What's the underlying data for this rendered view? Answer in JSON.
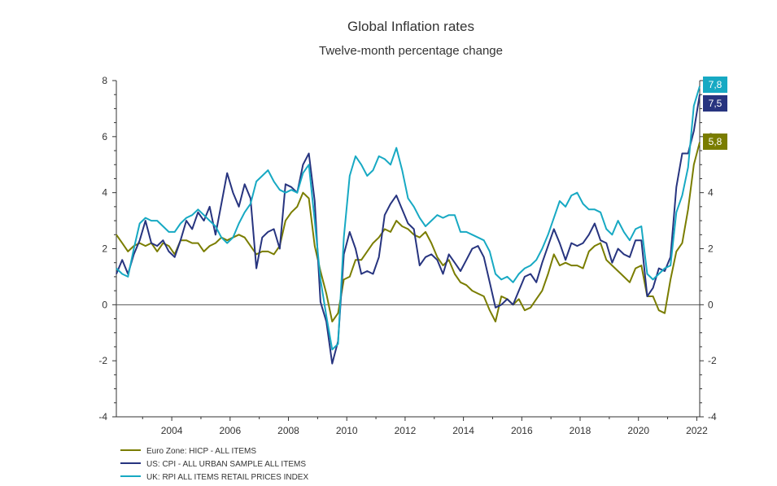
{
  "chart_data": {
    "type": "line",
    "title": "Global Inflation rates",
    "subtitle": "Twelve-month percentage change",
    "xlabel": "",
    "ylabel": "",
    "xlim": [
      2002.1,
      2022.1
    ],
    "ylim": [
      -4,
      8
    ],
    "x_ticks": [
      2004,
      2006,
      2008,
      2010,
      2012,
      2014,
      2016,
      2018,
      2020,
      2022
    ],
    "y_ticks": [
      -4,
      -2,
      0,
      2,
      4,
      6,
      8
    ],
    "y_ticks_right": [
      -4,
      -2,
      0,
      2,
      4,
      6,
      8
    ],
    "grid": false,
    "legend_position": "bottom-left",
    "series": [
      {
        "name": "Euro Zone: HICP - ALL ITEMS",
        "color": "#7a7d00",
        "end_label": "5,8",
        "points": [
          [
            2002.1,
            2.5
          ],
          [
            2002.3,
            2.2
          ],
          [
            2002.5,
            1.9
          ],
          [
            2002.7,
            2.1
          ],
          [
            2002.9,
            2.2
          ],
          [
            2003.1,
            2.1
          ],
          [
            2003.3,
            2.2
          ],
          [
            2003.5,
            1.9
          ],
          [
            2003.7,
            2.2
          ],
          [
            2003.9,
            2.1
          ],
          [
            2004.1,
            1.8
          ],
          [
            2004.3,
            2.3
          ],
          [
            2004.5,
            2.3
          ],
          [
            2004.7,
            2.2
          ],
          [
            2004.9,
            2.2
          ],
          [
            2005.1,
            1.9
          ],
          [
            2005.3,
            2.1
          ],
          [
            2005.5,
            2.2
          ],
          [
            2005.7,
            2.4
          ],
          [
            2005.9,
            2.3
          ],
          [
            2006.1,
            2.4
          ],
          [
            2006.3,
            2.5
          ],
          [
            2006.5,
            2.4
          ],
          [
            2006.7,
            2.1
          ],
          [
            2006.9,
            1.8
          ],
          [
            2007.1,
            1.9
          ],
          [
            2007.3,
            1.9
          ],
          [
            2007.5,
            1.8
          ],
          [
            2007.7,
            2.1
          ],
          [
            2007.9,
            3.0
          ],
          [
            2008.1,
            3.3
          ],
          [
            2008.3,
            3.5
          ],
          [
            2008.5,
            4.0
          ],
          [
            2008.7,
            3.8
          ],
          [
            2008.9,
            2.1
          ],
          [
            2009.1,
            1.2
          ],
          [
            2009.3,
            0.4
          ],
          [
            2009.5,
            -0.6
          ],
          [
            2009.7,
            -0.3
          ],
          [
            2009.9,
            0.9
          ],
          [
            2010.1,
            1.0
          ],
          [
            2010.3,
            1.6
          ],
          [
            2010.5,
            1.6
          ],
          [
            2010.7,
            1.9
          ],
          [
            2010.9,
            2.2
          ],
          [
            2011.1,
            2.4
          ],
          [
            2011.3,
            2.7
          ],
          [
            2011.5,
            2.6
          ],
          [
            2011.7,
            3.0
          ],
          [
            2011.9,
            2.8
          ],
          [
            2012.1,
            2.7
          ],
          [
            2012.3,
            2.5
          ],
          [
            2012.5,
            2.4
          ],
          [
            2012.7,
            2.6
          ],
          [
            2012.9,
            2.2
          ],
          [
            2013.1,
            1.7
          ],
          [
            2013.3,
            1.4
          ],
          [
            2013.5,
            1.6
          ],
          [
            2013.7,
            1.1
          ],
          [
            2013.9,
            0.8
          ],
          [
            2014.1,
            0.7
          ],
          [
            2014.3,
            0.5
          ],
          [
            2014.5,
            0.4
          ],
          [
            2014.7,
            0.3
          ],
          [
            2014.9,
            -0.2
          ],
          [
            2015.1,
            -0.6
          ],
          [
            2015.3,
            0.3
          ],
          [
            2015.5,
            0.2
          ],
          [
            2015.7,
            0.0
          ],
          [
            2015.9,
            0.2
          ],
          [
            2016.1,
            -0.2
          ],
          [
            2016.3,
            -0.1
          ],
          [
            2016.5,
            0.2
          ],
          [
            2016.7,
            0.5
          ],
          [
            2016.9,
            1.1
          ],
          [
            2017.1,
            1.8
          ],
          [
            2017.3,
            1.4
          ],
          [
            2017.5,
            1.5
          ],
          [
            2017.7,
            1.4
          ],
          [
            2017.9,
            1.4
          ],
          [
            2018.1,
            1.3
          ],
          [
            2018.3,
            1.9
          ],
          [
            2018.5,
            2.1
          ],
          [
            2018.7,
            2.2
          ],
          [
            2018.9,
            1.6
          ],
          [
            2019.1,
            1.4
          ],
          [
            2019.3,
            1.2
          ],
          [
            2019.5,
            1.0
          ],
          [
            2019.7,
            0.8
          ],
          [
            2019.9,
            1.3
          ],
          [
            2020.1,
            1.4
          ],
          [
            2020.3,
            0.3
          ],
          [
            2020.5,
            0.3
          ],
          [
            2020.7,
            -0.2
          ],
          [
            2020.9,
            -0.3
          ],
          [
            2021.1,
            0.9
          ],
          [
            2021.3,
            1.9
          ],
          [
            2021.5,
            2.2
          ],
          [
            2021.7,
            3.4
          ],
          [
            2021.9,
            5.0
          ],
          [
            2022.1,
            5.8
          ]
        ]
      },
      {
        "name": "US: CPI - ALL URBAN SAMPLE ALL ITEMS",
        "color": "#27347f",
        "end_label": "7,5",
        "points": [
          [
            2002.1,
            1.1
          ],
          [
            2002.3,
            1.6
          ],
          [
            2002.5,
            1.1
          ],
          [
            2002.7,
            1.8
          ],
          [
            2002.9,
            2.3
          ],
          [
            2003.1,
            3.0
          ],
          [
            2003.3,
            2.2
          ],
          [
            2003.5,
            2.1
          ],
          [
            2003.7,
            2.3
          ],
          [
            2003.9,
            1.9
          ],
          [
            2004.1,
            1.7
          ],
          [
            2004.3,
            2.3
          ],
          [
            2004.5,
            3.0
          ],
          [
            2004.7,
            2.7
          ],
          [
            2004.9,
            3.3
          ],
          [
            2005.1,
            3.0
          ],
          [
            2005.3,
            3.5
          ],
          [
            2005.5,
            2.5
          ],
          [
            2005.7,
            3.6
          ],
          [
            2005.9,
            4.7
          ],
          [
            2006.1,
            4.0
          ],
          [
            2006.3,
            3.5
          ],
          [
            2006.5,
            4.3
          ],
          [
            2006.7,
            3.8
          ],
          [
            2006.9,
            1.3
          ],
          [
            2007.1,
            2.4
          ],
          [
            2007.3,
            2.6
          ],
          [
            2007.5,
            2.7
          ],
          [
            2007.7,
            2.0
          ],
          [
            2007.9,
            4.3
          ],
          [
            2008.1,
            4.2
          ],
          [
            2008.3,
            4.0
          ],
          [
            2008.5,
            5.0
          ],
          [
            2008.7,
            5.4
          ],
          [
            2008.9,
            3.7
          ],
          [
            2009.1,
            0.1
          ],
          [
            2009.3,
            -0.6
          ],
          [
            2009.5,
            -2.1
          ],
          [
            2009.7,
            -1.3
          ],
          [
            2009.9,
            1.8
          ],
          [
            2010.1,
            2.6
          ],
          [
            2010.3,
            2.0
          ],
          [
            2010.5,
            1.1
          ],
          [
            2010.7,
            1.2
          ],
          [
            2010.9,
            1.1
          ],
          [
            2011.1,
            1.7
          ],
          [
            2011.3,
            3.2
          ],
          [
            2011.5,
            3.6
          ],
          [
            2011.7,
            3.9
          ],
          [
            2011.9,
            3.4
          ],
          [
            2012.1,
            2.9
          ],
          [
            2012.3,
            2.7
          ],
          [
            2012.5,
            1.4
          ],
          [
            2012.7,
            1.7
          ],
          [
            2012.9,
            1.8
          ],
          [
            2013.1,
            1.6
          ],
          [
            2013.3,
            1.1
          ],
          [
            2013.5,
            1.8
          ],
          [
            2013.7,
            1.5
          ],
          [
            2013.9,
            1.2
          ],
          [
            2014.1,
            1.6
          ],
          [
            2014.3,
            2.0
          ],
          [
            2014.5,
            2.1
          ],
          [
            2014.7,
            1.7
          ],
          [
            2014.9,
            0.8
          ],
          [
            2015.1,
            -0.1
          ],
          [
            2015.3,
            0.0
          ],
          [
            2015.5,
            0.2
          ],
          [
            2015.7,
            0.0
          ],
          [
            2015.9,
            0.5
          ],
          [
            2016.1,
            1.0
          ],
          [
            2016.3,
            1.1
          ],
          [
            2016.5,
            0.8
          ],
          [
            2016.7,
            1.5
          ],
          [
            2016.9,
            2.1
          ],
          [
            2017.1,
            2.7
          ],
          [
            2017.3,
            2.2
          ],
          [
            2017.5,
            1.6
          ],
          [
            2017.7,
            2.2
          ],
          [
            2017.9,
            2.1
          ],
          [
            2018.1,
            2.2
          ],
          [
            2018.3,
            2.5
          ],
          [
            2018.5,
            2.9
          ],
          [
            2018.7,
            2.3
          ],
          [
            2018.9,
            2.2
          ],
          [
            2019.1,
            1.5
          ],
          [
            2019.3,
            2.0
          ],
          [
            2019.5,
            1.8
          ],
          [
            2019.7,
            1.7
          ],
          [
            2019.9,
            2.3
          ],
          [
            2020.1,
            2.3
          ],
          [
            2020.3,
            0.3
          ],
          [
            2020.5,
            0.6
          ],
          [
            2020.7,
            1.3
          ],
          [
            2020.9,
            1.2
          ],
          [
            2021.1,
            1.7
          ],
          [
            2021.3,
            4.2
          ],
          [
            2021.5,
            5.4
          ],
          [
            2021.7,
            5.4
          ],
          [
            2021.9,
            6.2
          ],
          [
            2022.1,
            7.5
          ]
        ]
      },
      {
        "name": "UK: RPI ALL ITEMS RETAIL PRICES INDEX",
        "color": "#17a9c3",
        "end_label": "7,8",
        "points": [
          [
            2002.1,
            1.3
          ],
          [
            2002.3,
            1.1
          ],
          [
            2002.5,
            1.0
          ],
          [
            2002.7,
            2.0
          ],
          [
            2002.9,
            2.9
          ],
          [
            2003.1,
            3.1
          ],
          [
            2003.3,
            3.0
          ],
          [
            2003.5,
            3.0
          ],
          [
            2003.7,
            2.8
          ],
          [
            2003.9,
            2.6
          ],
          [
            2004.1,
            2.6
          ],
          [
            2004.3,
            2.9
          ],
          [
            2004.5,
            3.1
          ],
          [
            2004.7,
            3.2
          ],
          [
            2004.9,
            3.4
          ],
          [
            2005.1,
            3.2
          ],
          [
            2005.3,
            3.0
          ],
          [
            2005.5,
            2.8
          ],
          [
            2005.7,
            2.4
          ],
          [
            2005.9,
            2.2
          ],
          [
            2006.1,
            2.4
          ],
          [
            2006.3,
            2.9
          ],
          [
            2006.5,
            3.3
          ],
          [
            2006.7,
            3.6
          ],
          [
            2006.9,
            4.4
          ],
          [
            2007.1,
            4.6
          ],
          [
            2007.3,
            4.8
          ],
          [
            2007.5,
            4.4
          ],
          [
            2007.7,
            4.1
          ],
          [
            2007.9,
            4.0
          ],
          [
            2008.1,
            4.1
          ],
          [
            2008.3,
            4.0
          ],
          [
            2008.5,
            4.7
          ],
          [
            2008.7,
            5.0
          ],
          [
            2008.9,
            3.0
          ],
          [
            2009.1,
            0.9
          ],
          [
            2009.3,
            -0.4
          ],
          [
            2009.5,
            -1.6
          ],
          [
            2009.7,
            -1.4
          ],
          [
            2009.9,
            2.4
          ],
          [
            2010.1,
            4.6
          ],
          [
            2010.3,
            5.3
          ],
          [
            2010.5,
            5.0
          ],
          [
            2010.7,
            4.6
          ],
          [
            2010.9,
            4.8
          ],
          [
            2011.1,
            5.3
          ],
          [
            2011.3,
            5.2
          ],
          [
            2011.5,
            5.0
          ],
          [
            2011.7,
            5.6
          ],
          [
            2011.9,
            4.8
          ],
          [
            2012.1,
            3.8
          ],
          [
            2012.3,
            3.5
          ],
          [
            2012.5,
            3.1
          ],
          [
            2012.7,
            2.8
          ],
          [
            2012.9,
            3.0
          ],
          [
            2013.1,
            3.2
          ],
          [
            2013.3,
            3.1
          ],
          [
            2013.5,
            3.2
          ],
          [
            2013.7,
            3.2
          ],
          [
            2013.9,
            2.6
          ],
          [
            2014.1,
            2.6
          ],
          [
            2014.3,
            2.5
          ],
          [
            2014.5,
            2.4
          ],
          [
            2014.7,
            2.3
          ],
          [
            2014.9,
            1.9
          ],
          [
            2015.1,
            1.1
          ],
          [
            2015.3,
            0.9
          ],
          [
            2015.5,
            1.0
          ],
          [
            2015.7,
            0.8
          ],
          [
            2015.9,
            1.1
          ],
          [
            2016.1,
            1.3
          ],
          [
            2016.3,
            1.4
          ],
          [
            2016.5,
            1.6
          ],
          [
            2016.7,
            2.0
          ],
          [
            2016.9,
            2.5
          ],
          [
            2017.1,
            3.1
          ],
          [
            2017.3,
            3.7
          ],
          [
            2017.5,
            3.5
          ],
          [
            2017.7,
            3.9
          ],
          [
            2017.9,
            4.0
          ],
          [
            2018.1,
            3.6
          ],
          [
            2018.3,
            3.4
          ],
          [
            2018.5,
            3.4
          ],
          [
            2018.7,
            3.3
          ],
          [
            2018.9,
            2.7
          ],
          [
            2019.1,
            2.5
          ],
          [
            2019.3,
            3.0
          ],
          [
            2019.5,
            2.6
          ],
          [
            2019.7,
            2.3
          ],
          [
            2019.9,
            2.7
          ],
          [
            2020.1,
            2.8
          ],
          [
            2020.3,
            1.1
          ],
          [
            2020.5,
            0.9
          ],
          [
            2020.7,
            1.1
          ],
          [
            2020.9,
            1.3
          ],
          [
            2021.1,
            1.4
          ],
          [
            2021.3,
            3.3
          ],
          [
            2021.5,
            3.9
          ],
          [
            2021.7,
            4.9
          ],
          [
            2021.9,
            7.1
          ],
          [
            2022.1,
            7.8
          ]
        ]
      }
    ]
  }
}
